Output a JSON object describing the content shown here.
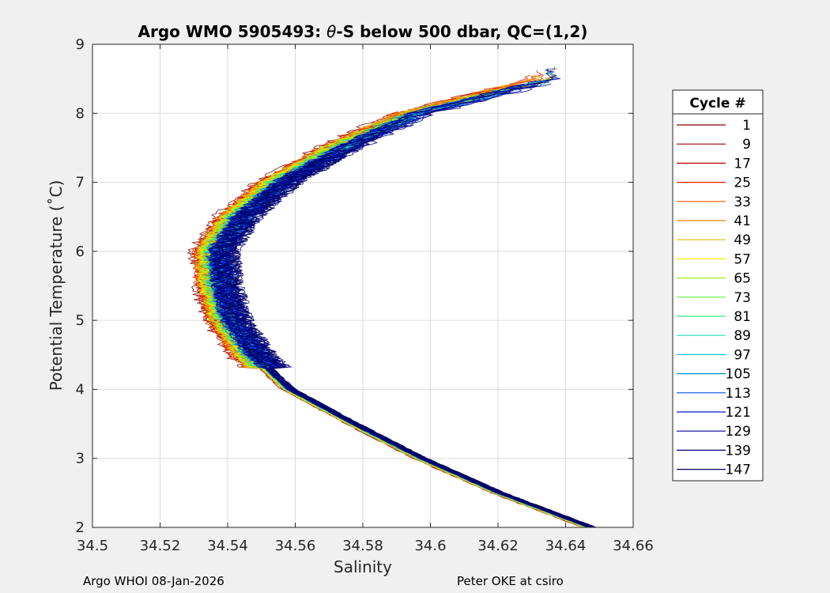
{
  "chart_data": {
    "type": "line",
    "title": "Argo WMO 5905493: θ-S below 500 dbar,  QC=(1,2)",
    "title_prefix": "Argo WMO 5905493: ",
    "title_theta": "θ",
    "title_suffix": "-S below 500 dbar,  QC=(1,2)",
    "xlabel": "Salinity",
    "ylabel": "Potential Temperature (˚C)",
    "xlim": [
      34.5,
      34.66
    ],
    "ylim": [
      2,
      9
    ],
    "xticks": [
      "34.5",
      "34.52",
      "34.54",
      "34.56",
      "34.58",
      "34.6",
      "34.62",
      "34.64",
      "34.66"
    ],
    "yticks": [
      "2",
      "3",
      "4",
      "5",
      "6",
      "7",
      "8",
      "9"
    ],
    "grid": true,
    "legend": {
      "title": "Cycle #",
      "position": "right",
      "entries": [
        {
          "label": "1",
          "color": "#800000"
        },
        {
          "label": "9",
          "color": "#9c0000"
        },
        {
          "label": "17",
          "color": "#c00000"
        },
        {
          "label": "25",
          "color": "#e02000"
        },
        {
          "label": "33",
          "color": "#f05000"
        },
        {
          "label": "41",
          "color": "#f08000"
        },
        {
          "label": "49",
          "color": "#f0b000"
        },
        {
          "label": "57",
          "color": "#f0f000"
        },
        {
          "label": "65",
          "color": "#a0f020"
        },
        {
          "label": "73",
          "color": "#60f040"
        },
        {
          "label": "81",
          "color": "#30f080"
        },
        {
          "label": "89",
          "color": "#20e0c0"
        },
        {
          "label": "97",
          "color": "#10c0e0"
        },
        {
          "label": "105",
          "color": "#0090d0"
        },
        {
          "label": "113",
          "color": "#0050e0"
        },
        {
          "label": "121",
          "color": "#0020c0"
        },
        {
          "label": "129",
          "color": "#0000a0"
        },
        {
          "label": "139",
          "color": "#000080"
        },
        {
          "label": "147",
          "color": "#000060"
        }
      ]
    },
    "series_profile": {
      "theta": [
        2.0,
        2.5,
        3.0,
        3.5,
        4.0,
        4.5,
        5.0,
        5.5,
        6.0,
        6.5,
        7.0,
        7.5,
        8.0,
        8.5
      ],
      "salinity_center": [
        34.647,
        34.62,
        34.597,
        34.577,
        34.558,
        34.547,
        34.54,
        34.537,
        34.536,
        34.543,
        34.555,
        34.573,
        34.595,
        34.635
      ]
    }
  },
  "footer": {
    "left": "Argo WHOI 08-Jan-2026",
    "right": "Peter OKE at csiro"
  }
}
